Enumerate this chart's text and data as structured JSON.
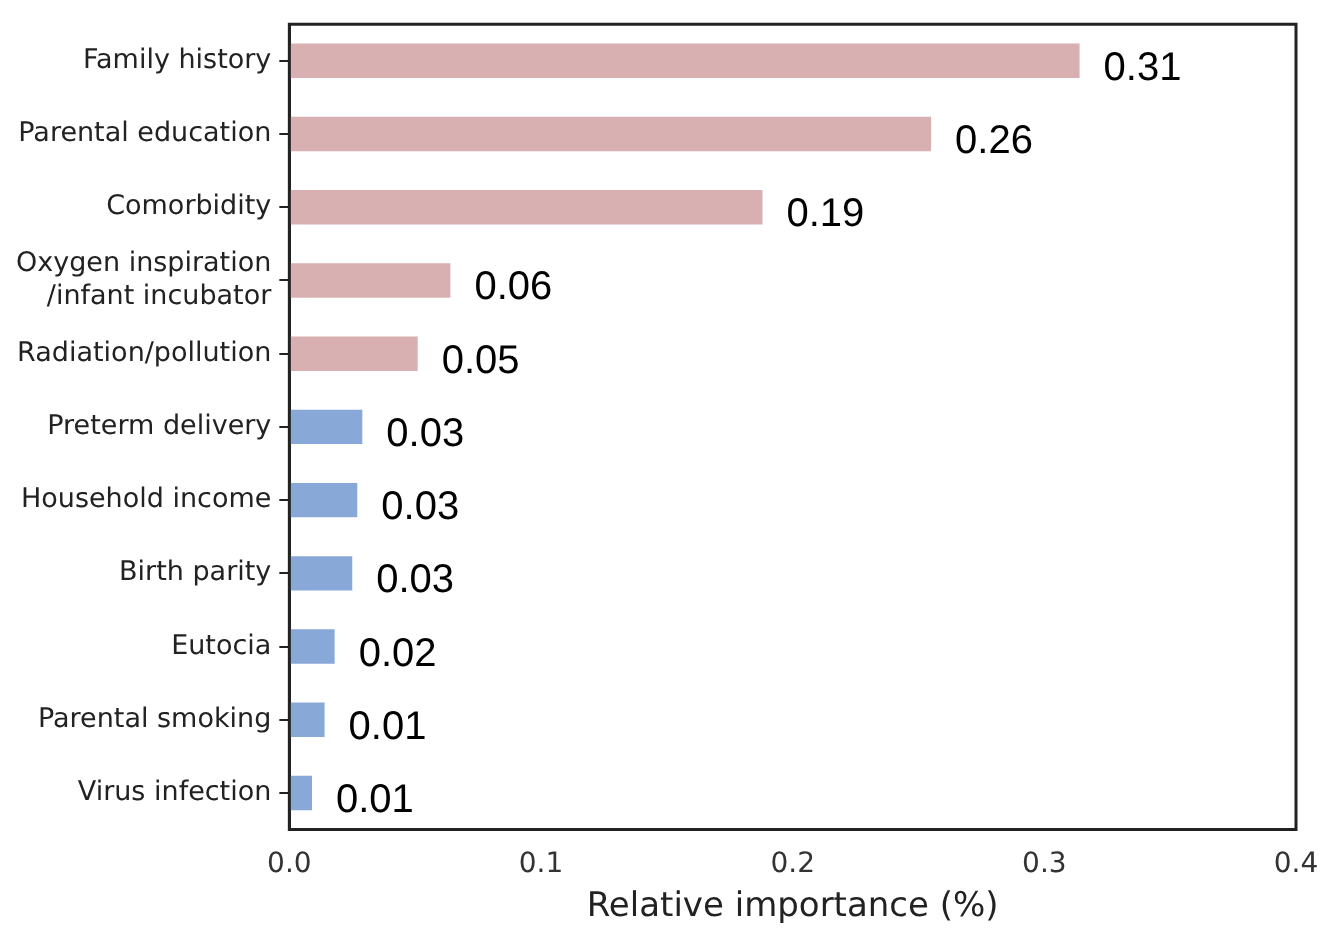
{
  "chart_data": {
    "type": "bar",
    "orientation": "horizontal",
    "xlabel": "Relative importance (%)",
    "categories": [
      "Family history",
      "Parental education",
      "Comorbidity",
      "Oxygen inspiration\n/infant incubator",
      "Radiation/pollution",
      "Preterm delivery",
      "Household income",
      "Birth parity",
      "Eutocia",
      "Parental smoking",
      "Virus infection"
    ],
    "values": [
      0.314,
      0.255,
      0.188,
      0.064,
      0.051,
      0.029,
      0.027,
      0.025,
      0.018,
      0.014,
      0.009
    ],
    "colors": [
      "#d8b0b2",
      "#d8b0b2",
      "#d8b0b2",
      "#d8b0b2",
      "#d8b0b2",
      "#88a9d8",
      "#88a9d8",
      "#88a9d8",
      "#88a9d8",
      "#88a9d8",
      "#88a9d8"
    ],
    "value_labels": [
      "0.31",
      "0.26",
      "0.19",
      "0.06",
      "0.05",
      "0.03",
      "0.03",
      "0.03",
      "0.02",
      "0.01",
      "0.01"
    ],
    "xlim": [
      0,
      0.4
    ],
    "xticks": [
      {
        "value": 0,
        "label": "0.0"
      },
      {
        "value": 0.1,
        "label": "0.1"
      },
      {
        "value": 0.2,
        "label": "0.2"
      },
      {
        "value": 0.3,
        "label": "0.3"
      },
      {
        "value": 0.4,
        "label": "0.4"
      }
    ],
    "grid": false,
    "legend": false
  }
}
